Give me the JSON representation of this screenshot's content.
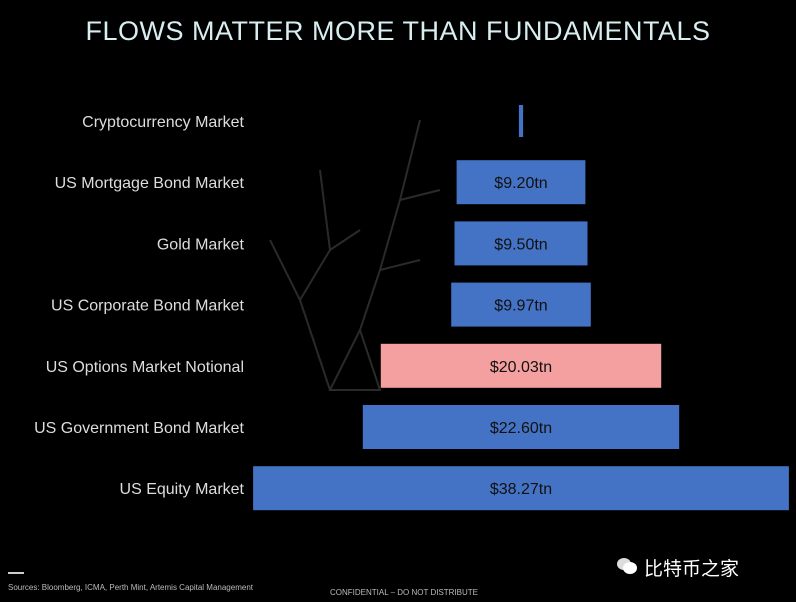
{
  "chart_data": {
    "type": "bar",
    "orientation": "horizontal-centered",
    "title": "FLOWS MATTER MORE THAN FUNDAMENTALS",
    "categories": [
      "Cryptocurrency Market",
      "US Mortgage Bond Market",
      "Gold Market",
      "US Corporate Bond Market",
      "US Options Market Notional",
      "US Government Bond Market",
      "US Equity Market"
    ],
    "values": [
      0.3,
      9.2,
      9.5,
      9.97,
      20.03,
      22.6,
      38.27
    ],
    "labels": [
      "",
      "$9.20tn",
      "$9.50tn",
      "$9.97tn",
      "$20.03tn",
      "$22.60tn",
      "$38.27tn"
    ],
    "colors": [
      "#4472c4",
      "#4472c4",
      "#4472c4",
      "#4472c4",
      "#f4a0a0",
      "#4472c4",
      "#4472c4"
    ],
    "grid": false
  },
  "footer": {
    "sources": "Sources: Bloomberg, ICMA, Perth Mint, Artemis Capital Management",
    "confidential": "CONFIDENTIAL  – DO NOT DISTRIBUTE",
    "watermark": "比特币之家"
  }
}
